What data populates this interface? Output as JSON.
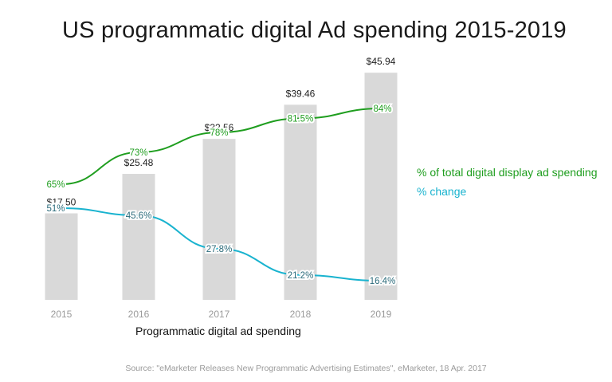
{
  "title": "US programmatic digital Ad spending 2015-2019",
  "source": "Source: \"eMarketer Releases New Programmatic Advertising Estimates\", eMarketer, 18 Apr. 2017",
  "colors": {
    "bar": "#d9d9d9",
    "share_line": "#1f9e1f",
    "change_line": "#19b3cf",
    "change_label": "#2a6a7a",
    "tick": "#9a9a9a"
  },
  "chart_data": {
    "type": "bar",
    "title": "US programmatic digital Ad spending 2015-2019",
    "categories": [
      "2015",
      "2016",
      "2017",
      "2018",
      "2019"
    ],
    "xlabel": "Programmatic digital ad spending",
    "ylabel": "",
    "ylim": [
      0,
      46
    ],
    "bar_series": {
      "name": "Programmatic digital ad spending",
      "values": [
        17.5,
        25.48,
        32.56,
        39.46,
        45.94
      ],
      "labels": [
        "$17.50",
        "$25.48",
        "$32.56",
        "$39.46",
        "$45.94"
      ]
    },
    "line_series": [
      {
        "name": "% of total digital display ad spending",
        "values": [
          65,
          73,
          78,
          81.5,
          84
        ],
        "labels": [
          "65%",
          "73%",
          "78%",
          "81.5%",
          "84%"
        ]
      },
      {
        "name": "% change",
        "values": [
          51,
          45.6,
          27.8,
          21.2,
          16.4
        ],
        "labels": [
          "51%",
          "45.6%",
          "27.8%",
          "21.2%",
          "16.4%"
        ]
      }
    ],
    "legend": "right",
    "grid": false
  }
}
